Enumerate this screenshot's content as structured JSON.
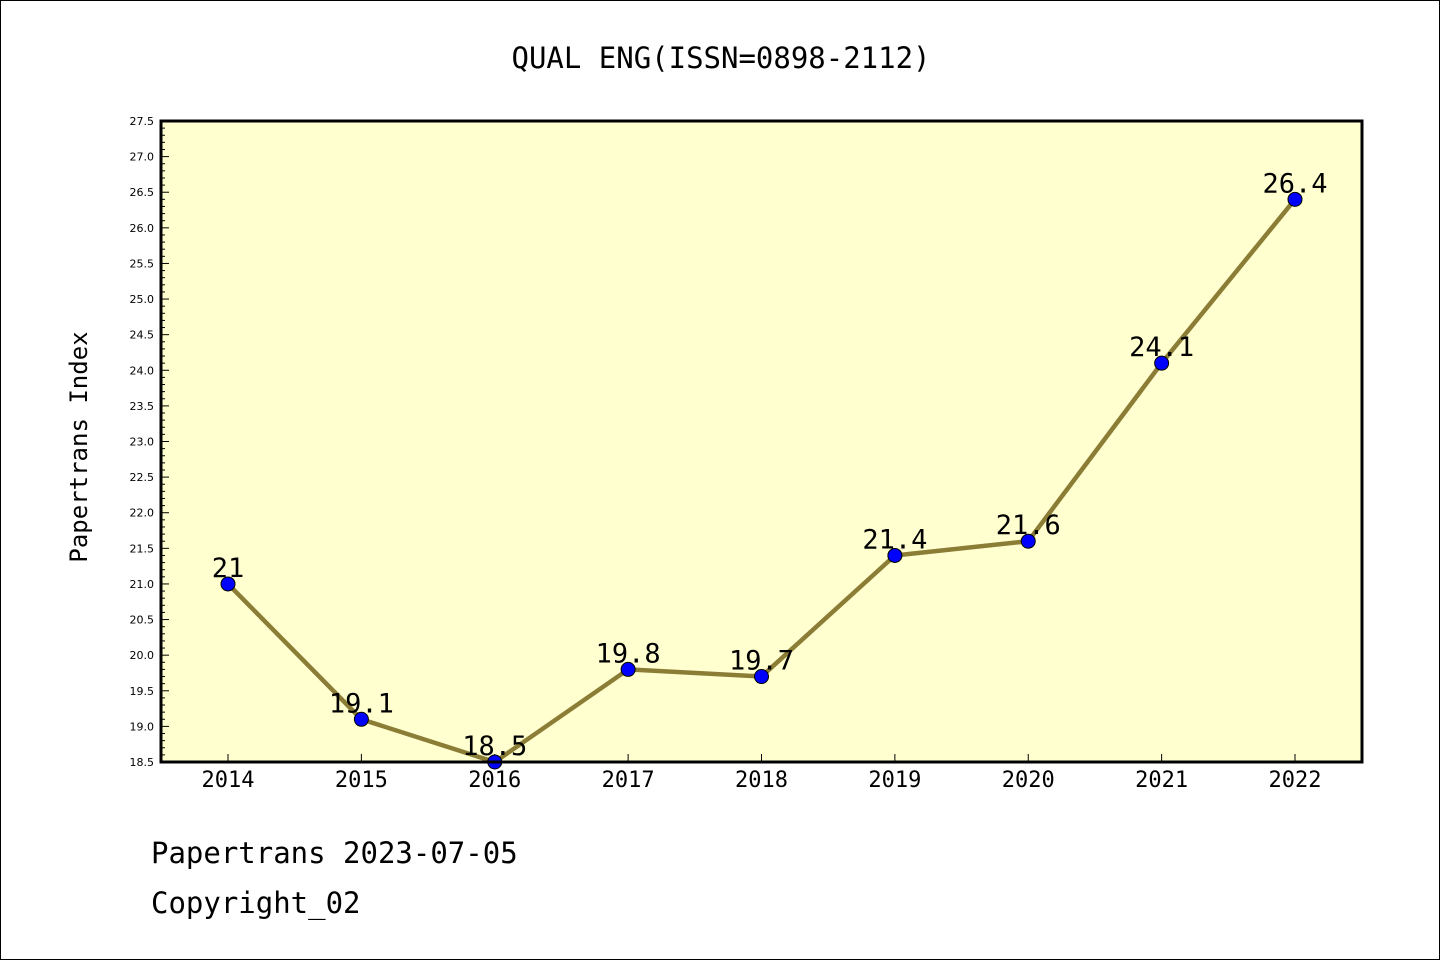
{
  "chart_data": {
    "type": "line",
    "title": "QUAL ENG(ISSN=0898-2112)",
    "xlabel": "",
    "ylabel": "Papertrans Index",
    "categories": [
      "2014",
      "2015",
      "2016",
      "2017",
      "2018",
      "2019",
      "2020",
      "2021",
      "2022"
    ],
    "values": [
      21,
      19.1,
      18.5,
      19.8,
      19.7,
      21.4,
      21.6,
      24.1,
      26.4
    ],
    "value_labels": [
      "21",
      "19.1",
      "18.5",
      "19.8",
      "19.7",
      "21.4",
      "21.6",
      "24.1",
      "26.4"
    ],
    "ylim": [
      18.5,
      27.5
    ],
    "yticks": [
      "18.5",
      "19.0",
      "19.5",
      "20.0",
      "20.5",
      "21.0",
      "21.5",
      "22.0",
      "22.5",
      "23.0",
      "23.5",
      "24.0",
      "24.5",
      "25.0",
      "25.5",
      "26.0",
      "26.5",
      "27.0",
      "27.5"
    ],
    "grid": false,
    "colors": {
      "plot_background": "#ffffd0",
      "line": "#8b7d35",
      "marker": "#0000ff"
    }
  },
  "footer": {
    "date_line": "Papertrans 2023-07-05",
    "copyright_line": "Copyright_02"
  }
}
